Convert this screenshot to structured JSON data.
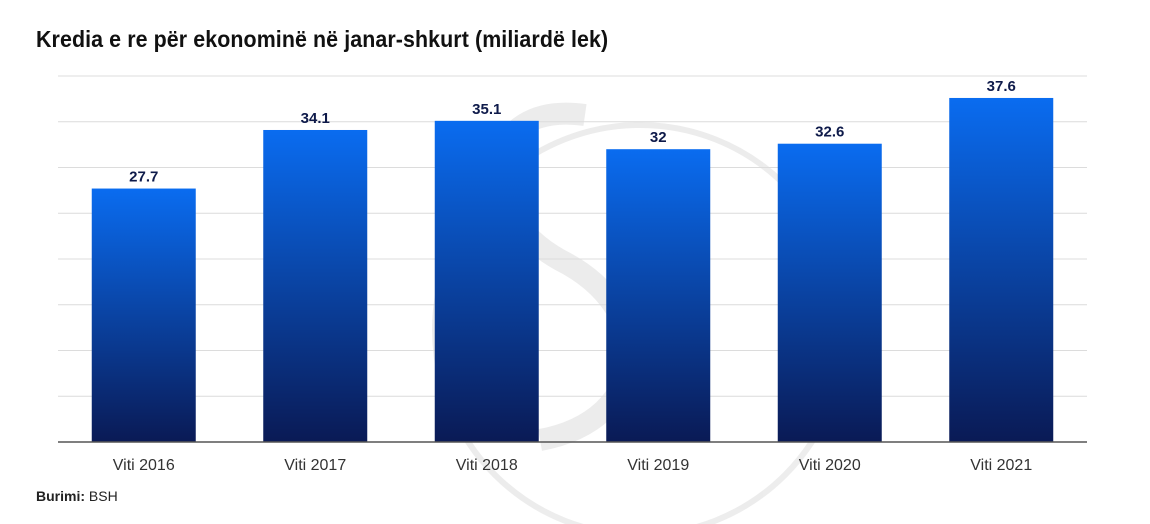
{
  "title": "Kredia e re për ekonominë në janar-shkurt (miliardë lek)",
  "source": {
    "label": "Burimi:",
    "value": "BSH"
  },
  "colors": {
    "bar_top": "#0a6cf0",
    "bar_bottom": "#0a1a55",
    "value_label": "#0e1a4a",
    "grid": "#dcdcdc",
    "axis": "#555555"
  },
  "chart_data": {
    "type": "bar",
    "categories": [
      "Viti 2016",
      "Viti 2017",
      "Viti 2018",
      "Viti 2019",
      "Viti 2020",
      "Viti 2021"
    ],
    "values": [
      27.7,
      34.1,
      35.1,
      32,
      32.6,
      37.6
    ],
    "value_labels": [
      "27.7",
      "34.1",
      "35.1",
      "32",
      "32.6",
      "37.6"
    ],
    "title": "Kredia e re për ekonominë në janar-shkurt (miliardë lek)",
    "xlabel": "",
    "ylabel": "",
    "ylim": [
      0,
      40
    ],
    "grid": true,
    "legend": "none"
  }
}
